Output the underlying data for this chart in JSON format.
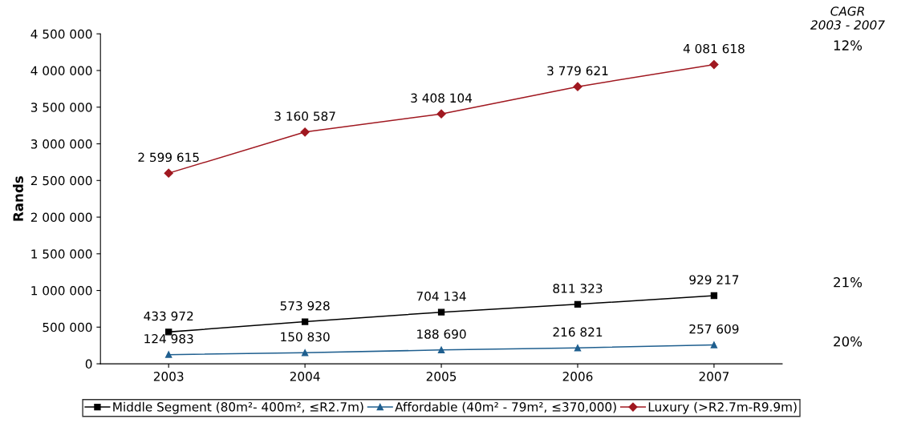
{
  "chart_data": {
    "type": "line",
    "ylabel": "Rands",
    "categories": [
      "2003",
      "2004",
      "2005",
      "2006",
      "2007"
    ],
    "series": [
      {
        "name": "Middle Segment (80m²- 400m², ≤R2.7m)",
        "color": "#000000",
        "marker": "square",
        "values": [
          433972,
          573928,
          704134,
          811323,
          929217
        ],
        "value_labels": [
          "433 972",
          "573 928",
          "704 134",
          "811 323",
          "929 217"
        ]
      },
      {
        "name": "Affordable (40m² - 79m², ≤370,000)",
        "color": "#1f5f8f",
        "marker": "triangle",
        "values": [
          124983,
          150830,
          188690,
          216821,
          257609
        ],
        "value_labels": [
          "124 983",
          "150 830",
          "188 690",
          "216 821",
          "257 609"
        ]
      },
      {
        "name": "Luxury (>R2.7m-R9.9m)",
        "color": "#a01820",
        "marker": "diamond",
        "values": [
          2599615,
          3160587,
          3408104,
          3779621,
          4081618
        ],
        "value_labels": [
          "2 599 615",
          "3 160 587",
          "3 408 104",
          "3 779 621",
          "4 081 618"
        ]
      }
    ],
    "ylim": [
      0,
      4500000
    ],
    "yticks": [
      0,
      {
        "value": 500000,
        "label": "500 000"
      },
      {
        "value": 1000000,
        "label": "1 000 000"
      },
      {
        "value": 1500000,
        "label": "1 500 000"
      },
      {
        "value": 2000000,
        "label": "2 000 000"
      },
      {
        "value": 2500000,
        "label": "2 500 000"
      },
      {
        "value": 3000000,
        "label": "3 000 000"
      },
      {
        "value": 3500000,
        "label": "3 500 000"
      },
      {
        "value": 4000000,
        "label": "4 000 000"
      },
      {
        "value": 4500000,
        "label": "4 500 000"
      }
    ],
    "grid": false,
    "legend": "bottom",
    "annotations": [
      "CAGR\n2003 - 2007",
      "12%",
      "21%",
      "20%"
    ]
  }
}
